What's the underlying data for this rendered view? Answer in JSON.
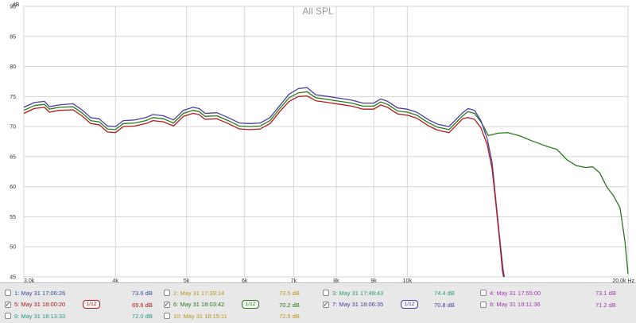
{
  "chart_data": {
    "type": "line",
    "title": "All SPL",
    "y_unit": "dB",
    "x_unit": "Hz",
    "xlim": [
      3000,
      20000
    ],
    "ylim": [
      45,
      90
    ],
    "x_scale": "log",
    "grid": true,
    "x_ticks": [
      {
        "value": 3000,
        "label": "3.0k"
      },
      {
        "value": 4000,
        "label": "4k"
      },
      {
        "value": 5000,
        "label": "5k"
      },
      {
        "value": 6000,
        "label": "6k"
      },
      {
        "value": 7000,
        "label": "7k"
      },
      {
        "value": 8000,
        "label": "8k"
      },
      {
        "value": 9000,
        "label": "9k"
      },
      {
        "value": 10000,
        "label": "10k"
      },
      {
        "value": 20000,
        "label": "20.0k Hz"
      }
    ],
    "y_ticks": [
      {
        "value": 45,
        "label": "45"
      },
      {
        "value": 50,
        "label": "50"
      },
      {
        "value": 55,
        "label": "55"
      },
      {
        "value": 60,
        "label": "60"
      },
      {
        "value": 65,
        "label": "65"
      },
      {
        "value": 70,
        "label": "70"
      },
      {
        "value": 75,
        "label": "75"
      },
      {
        "value": 80,
        "label": "80"
      },
      {
        "value": 85,
        "label": "85"
      },
      {
        "value": 90,
        "label": "90"
      }
    ],
    "y_top_unit_label": "dB",
    "series": [
      {
        "name": "6: May 31 18:03:42",
        "color": "#2a7a1c",
        "points": [
          [
            3000,
            72.7
          ],
          [
            3100,
            73.5
          ],
          [
            3200,
            73.7
          ],
          [
            3250,
            72.9
          ],
          [
            3350,
            73.2
          ],
          [
            3500,
            73.3
          ],
          [
            3600,
            72.3
          ],
          [
            3700,
            71.0
          ],
          [
            3800,
            70.8
          ],
          [
            3900,
            69.6
          ],
          [
            4000,
            69.5
          ],
          [
            4100,
            70.5
          ],
          [
            4250,
            70.6
          ],
          [
            4400,
            71.0
          ],
          [
            4500,
            71.5
          ],
          [
            4650,
            71.3
          ],
          [
            4800,
            70.6
          ],
          [
            4950,
            72.2
          ],
          [
            5100,
            72.7
          ],
          [
            5200,
            72.5
          ],
          [
            5300,
            71.7
          ],
          [
            5500,
            71.8
          ],
          [
            5700,
            71.0
          ],
          [
            5900,
            70.1
          ],
          [
            6100,
            70.0
          ],
          [
            6300,
            70.1
          ],
          [
            6500,
            71.0
          ],
          [
            6700,
            73.0
          ],
          [
            6900,
            74.8
          ],
          [
            7100,
            75.6
          ],
          [
            7300,
            75.8
          ],
          [
            7500,
            74.8
          ],
          [
            7800,
            74.5
          ],
          [
            8100,
            74.2
          ],
          [
            8400,
            73.9
          ],
          [
            8700,
            73.4
          ],
          [
            9000,
            73.4
          ],
          [
            9200,
            74.1
          ],
          [
            9400,
            73.7
          ],
          [
            9700,
            72.6
          ],
          [
            10000,
            72.4
          ],
          [
            10300,
            71.9
          ],
          [
            10700,
            70.6
          ],
          [
            11000,
            69.9
          ],
          [
            11400,
            69.5
          ],
          [
            11900,
            71.8
          ],
          [
            12100,
            72.5
          ],
          [
            12350,
            72.2
          ],
          [
            12600,
            70.8
          ],
          [
            12900,
            68.5
          ],
          [
            13300,
            68.9
          ],
          [
            13700,
            69.0
          ],
          [
            14200,
            68.5
          ],
          [
            14800,
            67.6
          ],
          [
            15500,
            66.7
          ],
          [
            16000,
            66.2
          ],
          [
            16500,
            64.5
          ],
          [
            17000,
            63.5
          ],
          [
            17500,
            63.2
          ],
          [
            17900,
            63.3
          ],
          [
            18300,
            62.3
          ],
          [
            18700,
            60.0
          ],
          [
            19100,
            58.5
          ],
          [
            19500,
            56.5
          ],
          [
            19800,
            51.0
          ],
          [
            20000,
            45.5
          ]
        ]
      },
      {
        "name": "7: May 31 18:06:35",
        "color": "#4a3fa0",
        "points": [
          [
            3000,
            73.2
          ],
          [
            3100,
            74.0
          ],
          [
            3200,
            74.2
          ],
          [
            3250,
            73.3
          ],
          [
            3350,
            73.6
          ],
          [
            3500,
            73.8
          ],
          [
            3600,
            72.8
          ],
          [
            3700,
            71.5
          ],
          [
            3800,
            71.3
          ],
          [
            3900,
            70.1
          ],
          [
            4000,
            70.0
          ],
          [
            4100,
            71.0
          ],
          [
            4250,
            71.1
          ],
          [
            4400,
            71.5
          ],
          [
            4500,
            72.0
          ],
          [
            4650,
            71.8
          ],
          [
            4800,
            71.1
          ],
          [
            4950,
            72.7
          ],
          [
            5100,
            73.2
          ],
          [
            5200,
            73.0
          ],
          [
            5300,
            72.2
          ],
          [
            5500,
            72.3
          ],
          [
            5700,
            71.5
          ],
          [
            5900,
            70.6
          ],
          [
            6100,
            70.5
          ],
          [
            6300,
            70.6
          ],
          [
            6500,
            71.5
          ],
          [
            6700,
            73.5
          ],
          [
            6900,
            75.4
          ],
          [
            7100,
            76.3
          ],
          [
            7300,
            76.5
          ],
          [
            7500,
            75.3
          ],
          [
            7800,
            75.0
          ],
          [
            8100,
            74.7
          ],
          [
            8400,
            74.4
          ],
          [
            8700,
            73.9
          ],
          [
            9000,
            73.9
          ],
          [
            9200,
            74.6
          ],
          [
            9400,
            74.2
          ],
          [
            9700,
            73.1
          ],
          [
            10000,
            72.9
          ],
          [
            10300,
            72.4
          ],
          [
            10700,
            71.1
          ],
          [
            11000,
            70.4
          ],
          [
            11400,
            70.0
          ],
          [
            11900,
            72.3
          ],
          [
            12100,
            73.0
          ],
          [
            12350,
            72.7
          ],
          [
            12600,
            71.0
          ],
          [
            12850,
            68.0
          ],
          [
            13050,
            64.0
          ],
          [
            13200,
            58.0
          ],
          [
            13350,
            52.0
          ],
          [
            13500,
            46.5
          ],
          [
            13560,
            45.0
          ]
        ]
      },
      {
        "name": "5: May 31 18:00:20",
        "color": "#b01a1a",
        "points": [
          [
            3000,
            72.2
          ],
          [
            3100,
            73.0
          ],
          [
            3200,
            73.2
          ],
          [
            3250,
            72.4
          ],
          [
            3350,
            72.7
          ],
          [
            3500,
            72.8
          ],
          [
            3600,
            71.8
          ],
          [
            3700,
            70.5
          ],
          [
            3800,
            70.3
          ],
          [
            3900,
            69.1
          ],
          [
            4000,
            69.0
          ],
          [
            4100,
            70.0
          ],
          [
            4250,
            70.1
          ],
          [
            4400,
            70.5
          ],
          [
            4500,
            71.0
          ],
          [
            4650,
            70.8
          ],
          [
            4800,
            70.1
          ],
          [
            4950,
            71.7
          ],
          [
            5100,
            72.2
          ],
          [
            5200,
            72.0
          ],
          [
            5300,
            71.2
          ],
          [
            5500,
            71.3
          ],
          [
            5700,
            70.5
          ],
          [
            5900,
            69.6
          ],
          [
            6100,
            69.5
          ],
          [
            6300,
            69.6
          ],
          [
            6500,
            70.5
          ],
          [
            6700,
            72.5
          ],
          [
            6900,
            74.2
          ],
          [
            7100,
            75.0
          ],
          [
            7300,
            75.1
          ],
          [
            7500,
            74.3
          ],
          [
            7800,
            74.0
          ],
          [
            8100,
            73.7
          ],
          [
            8400,
            73.4
          ],
          [
            8700,
            72.9
          ],
          [
            9000,
            72.9
          ],
          [
            9200,
            73.6
          ],
          [
            9400,
            73.2
          ],
          [
            9700,
            72.1
          ],
          [
            10000,
            71.9
          ],
          [
            10300,
            71.4
          ],
          [
            10700,
            70.1
          ],
          [
            11000,
            69.4
          ],
          [
            11400,
            69.0
          ],
          [
            11900,
            71.3
          ],
          [
            12100,
            71.5
          ],
          [
            12350,
            71.2
          ],
          [
            12600,
            69.8
          ],
          [
            12850,
            67.0
          ],
          [
            13050,
            63.0
          ],
          [
            13200,
            57.5
          ],
          [
            13350,
            51.5
          ],
          [
            13480,
            46.0
          ],
          [
            13530,
            45.0
          ]
        ]
      }
    ]
  },
  "legend": {
    "items": [
      {
        "label": "1: May 31 17:06:26",
        "value": "73.6 dB",
        "color": "#3a4fa8",
        "checked": false
      },
      {
        "label": "2: May 31 17:39:14",
        "value": "73.5 dB",
        "color": "#b89a1a",
        "checked": false
      },
      {
        "label": "3: May 31 17:49:43",
        "value": "74.4 dB",
        "color": "#2aa070",
        "checked": false
      },
      {
        "label": "4: May 31 17:55:00",
        "value": "73.1 dB",
        "color": "#a43ab0",
        "checked": false
      },
      {
        "label": "5: May 31 18:00:20",
        "value": "69.6 dB",
        "color": "#b01a1a",
        "checked": true,
        "smoothing": "1/12"
      },
      {
        "label": "6: May 31 18:03:42",
        "value": "70.2 dB",
        "color": "#2a7a1c",
        "checked": true,
        "smoothing": "1/12"
      },
      {
        "label": "7: May 31 18:06:35",
        "value": "70.8 dB",
        "color": "#4a3fa0",
        "checked": true,
        "smoothing": "1/12"
      },
      {
        "label": "8: May 31 18:11:36",
        "value": "71.2 dB",
        "color": "#a43ab0",
        "checked": false
      },
      {
        "label": "9: May 31 18:13:33",
        "value": "72.0 dB",
        "color": "#2a9a8a",
        "checked": false
      },
      {
        "label": "10: May 31 18:15:11",
        "value": "72.5 dB",
        "color": "#b89a1a",
        "checked": false
      }
    ],
    "check_glyph": "✓"
  }
}
